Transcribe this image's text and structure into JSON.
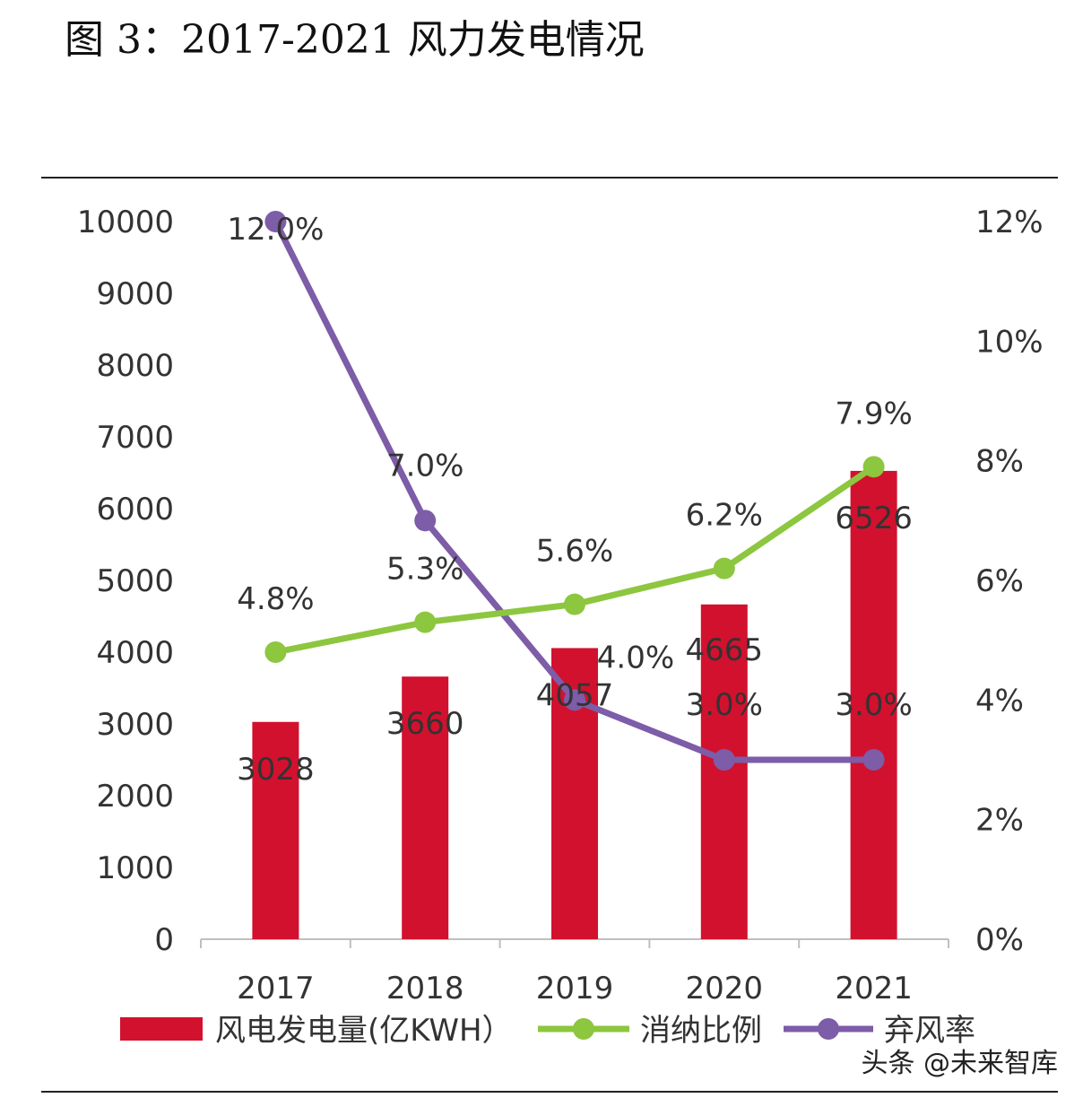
{
  "title": "图 3：2017-2021 风力发电情况",
  "watermark": "头条 @未来智库",
  "chart_data": {
    "type": "bar+line",
    "categories": [
      "2017",
      "2018",
      "2019",
      "2020",
      "2021"
    ],
    "y_left": {
      "min": 0,
      "max": 10000,
      "step": 1000,
      "ticks": [
        "0",
        "1000",
        "2000",
        "3000",
        "4000",
        "5000",
        "6000",
        "7000",
        "8000",
        "9000",
        "10000"
      ]
    },
    "y_right": {
      "min": 0,
      "max": 12,
      "step": 2,
      "ticks": [
        "0%",
        "2%",
        "4%",
        "6%",
        "8%",
        "10%",
        "12%"
      ]
    },
    "series": [
      {
        "name": "风电发电量(亿KWH）",
        "type": "bar",
        "axis": "left",
        "color": "#d2112e",
        "values": [
          3028,
          3660,
          4057,
          4665,
          6526
        ],
        "labels": [
          "3028",
          "3660",
          "4057",
          "4665",
          "6526"
        ]
      },
      {
        "name": "消纳比例",
        "type": "line",
        "axis": "right",
        "color": "#8dc63f",
        "values": [
          4.8,
          5.3,
          5.6,
          6.2,
          7.9
        ],
        "labels": [
          "4.8%",
          "5.3%",
          "5.6%",
          "6.2%",
          "7.9%"
        ]
      },
      {
        "name": "弃风率",
        "type": "line",
        "axis": "right",
        "color": "#7d5ca8",
        "values": [
          12.0,
          7.0,
          4.0,
          3.0,
          3.0
        ],
        "labels": [
          "12.0%",
          "7.0%",
          "4.0%",
          "3.0%",
          "3.0%"
        ]
      }
    ],
    "legend_position": "bottom"
  }
}
